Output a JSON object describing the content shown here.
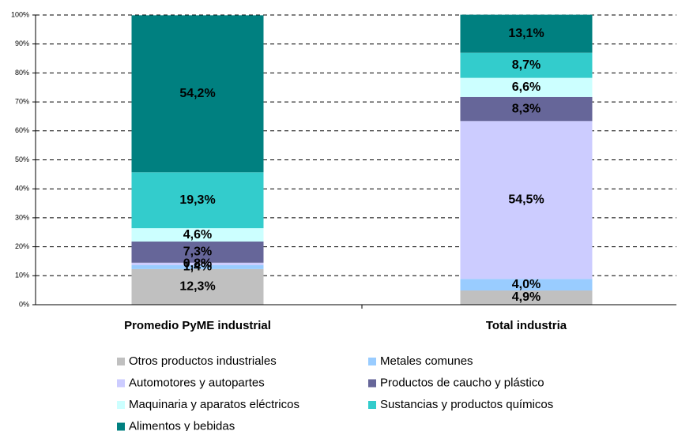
{
  "chart_data": {
    "type": "stacked_bar",
    "categories": [
      "Promedio PyME industrial",
      "Total industria"
    ],
    "ylim": [
      0,
      100
    ],
    "yticks": [
      {
        "value": 0,
        "label": "0%"
      },
      {
        "value": 10,
        "label": "10%"
      },
      {
        "value": 20,
        "label": "20%"
      },
      {
        "value": 30,
        "label": "30%"
      },
      {
        "value": 40,
        "label": "40%"
      },
      {
        "value": 50,
        "label": "50%"
      },
      {
        "value": 60,
        "label": "60%"
      },
      {
        "value": 70,
        "label": "70%"
      },
      {
        "value": 80,
        "label": "80%"
      },
      {
        "value": 90,
        "label": "90%"
      },
      {
        "value": 100,
        "label": "100%"
      }
    ],
    "grid": true,
    "legend": "bottom",
    "series": [
      {
        "name": "Otros productos industriales",
        "color": "#c0c0c0",
        "values": [
          12.3,
          4.9
        ],
        "value_labels": [
          "12,3%",
          "4,9%"
        ]
      },
      {
        "name": "Metales comunes",
        "color": "#99ccff",
        "values": [
          1.4,
          4.0
        ],
        "value_labels": [
          "1,4%",
          "4,0%"
        ]
      },
      {
        "name": "Automotores y autopartes",
        "color": "#ccccff",
        "values": [
          0.8,
          54.5
        ],
        "value_labels": [
          "0,8%",
          "54,5%"
        ]
      },
      {
        "name": "Productos de caucho y plástico",
        "color": "#666699",
        "values": [
          7.3,
          8.3
        ],
        "value_labels": [
          "7,3%",
          "8,3%"
        ]
      },
      {
        "name": "Maquinaria y aparatos eléctricos",
        "color": "#ccffff",
        "values": [
          4.6,
          6.6
        ],
        "value_labels": [
          "4,6%",
          "6,6%"
        ]
      },
      {
        "name": "Sustancias y productos químicos",
        "color": "#33cccc",
        "values": [
          19.3,
          8.7
        ],
        "value_labels": [
          "19,3%",
          "8,7%"
        ]
      },
      {
        "name": "Alimentos y bebidas",
        "color": "#008080",
        "values": [
          54.2,
          13.1
        ],
        "value_labels": [
          "54,2%",
          "13,1%"
        ]
      }
    ]
  }
}
